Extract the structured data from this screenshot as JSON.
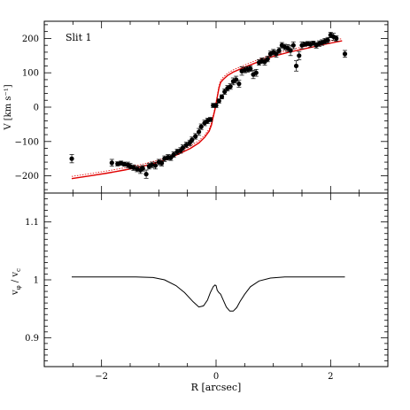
{
  "chart_data": [
    {
      "type": "scatter",
      "annotation": "Slit 1",
      "ylabel": "V [km s⁻¹]",
      "xlim": [
        -3.0,
        3.0
      ],
      "ylim": [
        -250,
        250
      ],
      "xticks": [
        -2,
        0,
        2
      ],
      "yticks": [
        -200,
        -100,
        0,
        100,
        200
      ],
      "ytick_labels": [
        "−200",
        "−100",
        "0",
        "100",
        "200"
      ],
      "colors": {
        "points": "#000000",
        "model": "#e00000"
      },
      "series": [
        {
          "kind": "points-with-errorbars",
          "x": [
            -2.52,
            -1.82,
            -1.72,
            -1.66,
            -1.6,
            -1.54,
            -1.5,
            -1.44,
            -1.38,
            -1.32,
            -1.28,
            -1.22,
            -1.17,
            -1.12,
            -1.06,
            -1.0,
            -0.95,
            -0.9,
            -0.84,
            -0.79,
            -0.74,
            -0.68,
            -0.62,
            -0.58,
            -0.52,
            -0.46,
            -0.42,
            -0.36,
            -0.3,
            -0.26,
            -0.2,
            -0.15,
            -0.1,
            -0.05,
            0.0,
            0.05,
            0.1,
            0.15,
            0.2,
            0.25,
            0.3,
            0.35,
            0.4,
            0.45,
            0.5,
            0.55,
            0.6,
            0.65,
            0.7,
            0.75,
            0.8,
            0.85,
            0.9,
            0.95,
            1.0,
            1.05,
            1.1,
            1.15,
            1.2,
            1.25,
            1.3,
            1.35,
            1.4,
            1.45,
            1.5,
            1.55,
            1.6,
            1.65,
            1.7,
            1.75,
            1.8,
            1.85,
            1.9,
            1.95,
            2.0,
            2.05,
            2.1,
            2.25
          ],
          "y": [
            -150,
            -162,
            -165,
            -163,
            -166,
            -168,
            -172,
            -176,
            -180,
            -183,
            -178,
            -195,
            -172,
            -168,
            -170,
            -160,
            -163,
            -150,
            -146,
            -147,
            -138,
            -130,
            -126,
            -118,
            -110,
            -104,
            -95,
            -85,
            -72,
            -57,
            -46,
            -40,
            -36,
            5,
            5,
            18,
            30,
            45,
            55,
            60,
            75,
            80,
            68,
            105,
            108,
            110,
            112,
            95,
            100,
            130,
            135,
            132,
            140,
            155,
            160,
            155,
            165,
            180,
            175,
            172,
            165,
            180,
            120,
            150,
            180,
            183,
            185,
            183,
            186,
            180,
            185,
            188,
            192,
            195,
            210,
            205,
            200,
            155
          ],
          "err": [
            12,
            10,
            6,
            6,
            6,
            8,
            8,
            8,
            8,
            10,
            8,
            12,
            8,
            8,
            10,
            8,
            8,
            8,
            8,
            8,
            8,
            8,
            8,
            8,
            8,
            8,
            8,
            8,
            10,
            8,
            8,
            8,
            6,
            6,
            6,
            6,
            6,
            8,
            8,
            8,
            10,
            10,
            10,
            12,
            8,
            8,
            8,
            12,
            10,
            8,
            8,
            10,
            8,
            8,
            8,
            10,
            8,
            8,
            8,
            10,
            15,
            10,
            15,
            12,
            10,
            6,
            6,
            8,
            6,
            8,
            8,
            8,
            8,
            8,
            8,
            10,
            8,
            10
          ]
        },
        {
          "kind": "model-curve",
          "x": [
            -2.52,
            -2.2,
            -1.9,
            -1.6,
            -1.3,
            -1.0,
            -0.8,
            -0.6,
            -0.45,
            -0.3,
            -0.2,
            -0.12,
            -0.08,
            -0.05,
            -0.02,
            0.0,
            0.02,
            0.05,
            0.08,
            0.12,
            0.2,
            0.3,
            0.45,
            0.6,
            0.8,
            1.0,
            1.3,
            1.6,
            1.9,
            2.2
          ],
          "y": [
            -208,
            -200,
            -192,
            -183,
            -173,
            -160,
            -148,
            -132,
            -120,
            -104,
            -88,
            -70,
            -52,
            -28,
            -8,
            10,
            28,
            55,
            72,
            80,
            92,
            102,
            113,
            123,
            136,
            148,
            161,
            172,
            183,
            193
          ]
        }
      ]
    },
    {
      "type": "line",
      "xlabel": "R [arcsec]",
      "ylabel": "v_φ / v_c",
      "ylabel_parts": {
        "v1": "v",
        "sub1": "φ",
        "slash": " / ",
        "v2": "v",
        "sub2": "c"
      },
      "xlim": [
        -3.0,
        3.0
      ],
      "ylim": [
        0.85,
        1.15
      ],
      "xticks": [
        -2,
        0,
        2
      ],
      "xtick_labels": [
        "−2",
        "0",
        "2"
      ],
      "yticks": [
        0.9,
        1.0,
        1.1
      ],
      "ytick_labels": [
        "0.9",
        "1",
        "1.1"
      ],
      "colors": {
        "line": "#000000"
      },
      "series": [
        {
          "x": [
            -2.52,
            -2.2,
            -1.8,
            -1.4,
            -1.1,
            -0.9,
            -0.7,
            -0.55,
            -0.4,
            -0.3,
            -0.22,
            -0.15,
            -0.1,
            -0.05,
            -0.02,
            0.0,
            0.02,
            0.05,
            0.08,
            0.12,
            0.18,
            0.24,
            0.3,
            0.36,
            0.42,
            0.5,
            0.6,
            0.75,
            0.95,
            1.2,
            1.5,
            1.8,
            2.1,
            2.25
          ],
          "y": [
            1.005,
            1.005,
            1.005,
            1.005,
            1.004,
            1.0,
            0.99,
            0.978,
            0.962,
            0.953,
            0.955,
            0.965,
            0.978,
            0.988,
            0.991,
            0.99,
            0.982,
            0.978,
            0.975,
            0.966,
            0.953,
            0.946,
            0.946,
            0.952,
            0.963,
            0.975,
            0.988,
            0.998,
            1.003,
            1.005,
            1.005,
            1.005,
            1.005,
            1.005
          ]
        }
      ]
    }
  ]
}
